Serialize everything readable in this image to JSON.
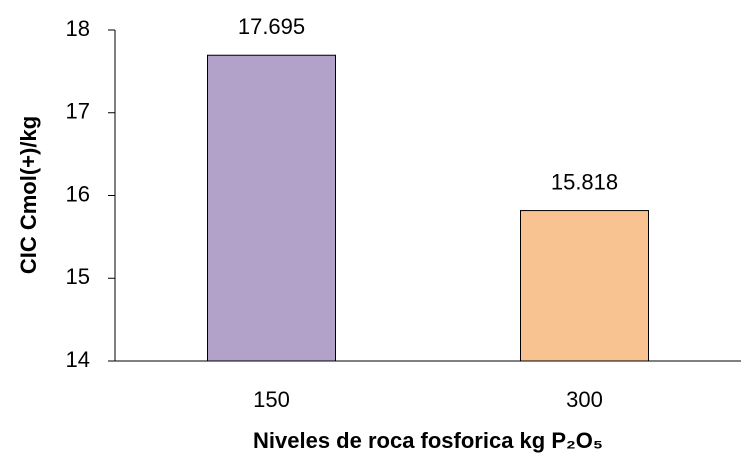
{
  "chart_data": {
    "type": "bar",
    "x_label": "Niveles de roca fosforica kg P₂O₅",
    "y_label": "CIC Cmol(+)/kg",
    "categories": [
      "150",
      "300"
    ],
    "values": [
      17.695,
      15.818
    ],
    "colors": [
      "#b2a2c9",
      "#f9c291"
    ],
    "ylim": [
      14,
      18
    ],
    "yticks": [
      14,
      15,
      16,
      17,
      18
    ],
    "grid": false
  }
}
